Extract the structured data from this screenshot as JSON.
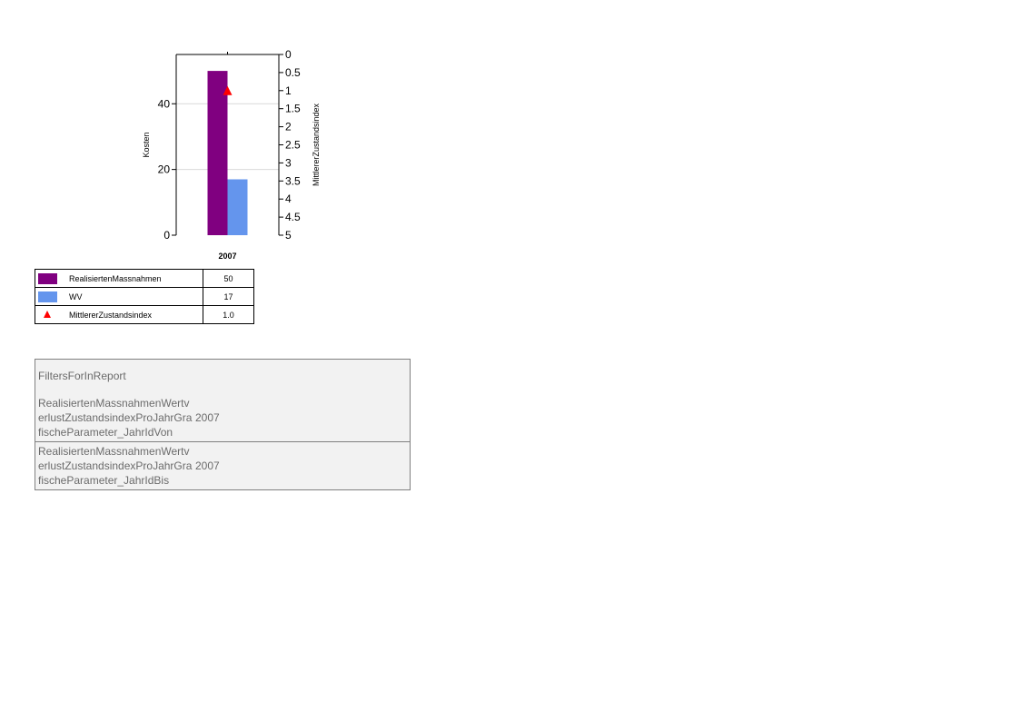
{
  "chart_data": {
    "type": "bar",
    "categories": [
      "2007"
    ],
    "series": [
      {
        "name": "RealisiertenMassnahmen",
        "values": [
          50
        ],
        "color": "#800080",
        "axis": "left",
        "kind": "bar"
      },
      {
        "name": "WV",
        "values": [
          17
        ],
        "color": "#6495ed",
        "axis": "left",
        "kind": "bar"
      },
      {
        "name": "MittlererZustandsindex",
        "values": [
          1.0
        ],
        "color": "#ff0000",
        "axis": "right",
        "kind": "marker",
        "marker": "triangle"
      }
    ],
    "ylabel": "Kosten",
    "ylim": [
      0,
      55
    ],
    "yticks": [
      "0",
      "20",
      "40"
    ],
    "y2label": "MittlererZustandsindex",
    "y2lim": [
      0,
      5
    ],
    "y2_reversed": true,
    "y2ticks": [
      "0",
      "0.5",
      "1",
      "1.5",
      "2",
      "2.5",
      "3",
      "3.5",
      "4",
      "4.5",
      "5"
    ],
    "grid": true
  },
  "legend_table": {
    "rows": [
      {
        "name": "RealisiertenMassnahmen",
        "value": "50",
        "swatch": "#800080"
      },
      {
        "name": "WV",
        "value": "17",
        "swatch": "#6495ed"
      },
      {
        "name": "MittlererZustandsindex",
        "value": "1.0",
        "swatch": "#ff0000"
      }
    ]
  },
  "filters": {
    "title": "FiltersForInReport",
    "rows": [
      {
        "label": "RealisiertenMassnahmenWertverlustZustandsindexProJahrGrafischeParameter_JahrIdVon",
        "value": "2007"
      },
      {
        "label": "RealisiertenMassnahmenWertverlustZustandsindexProJahrGrafischeParameter_JahrIdBis",
        "value": "2007"
      }
    ]
  }
}
